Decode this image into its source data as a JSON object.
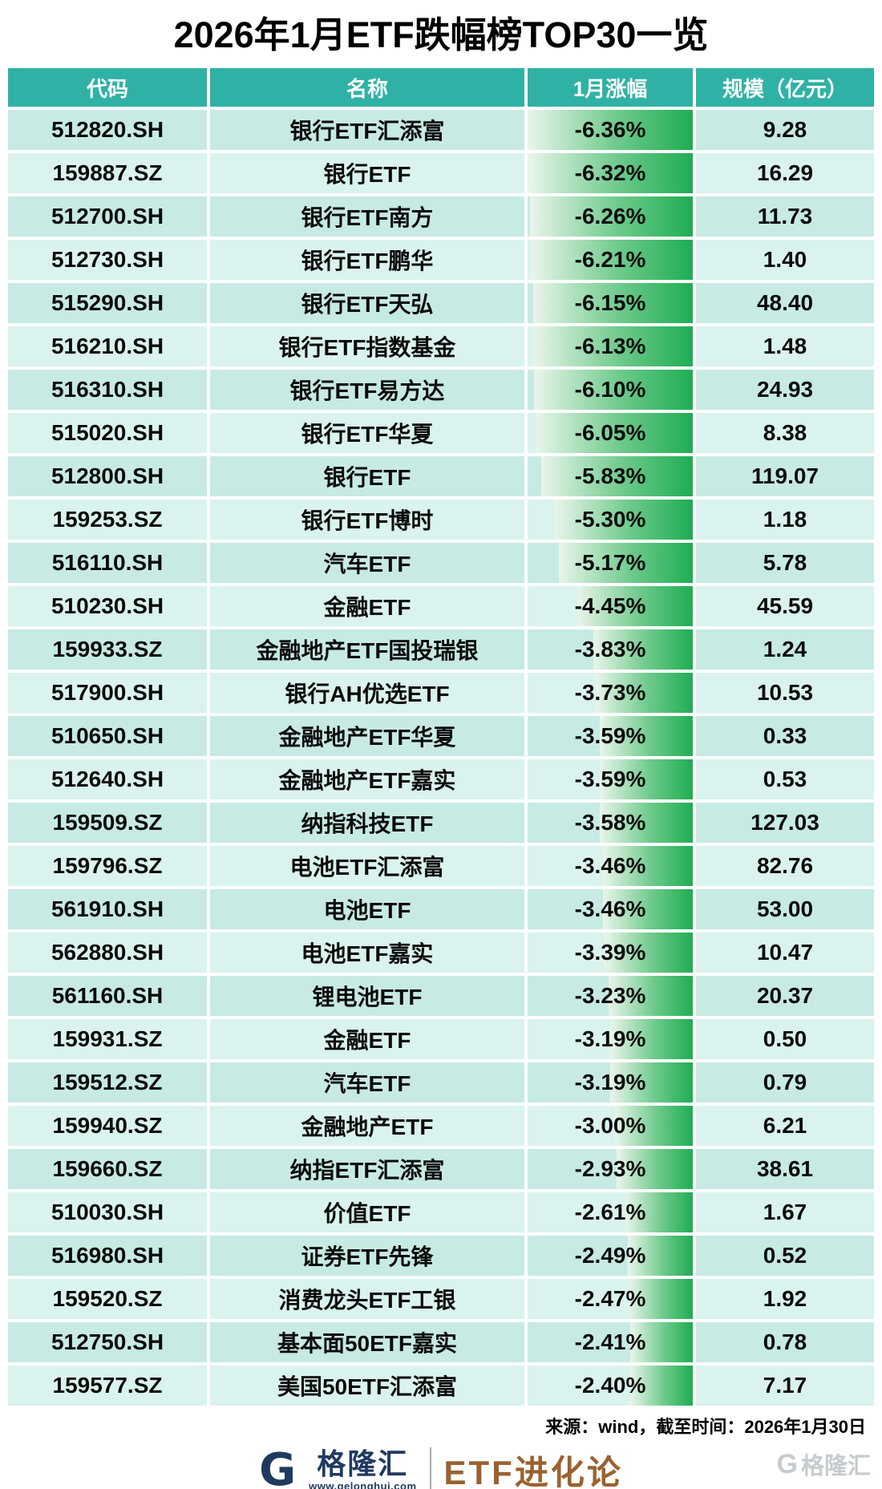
{
  "header": {
    "title": "2026年1月ETF跌幅榜TOP30一览"
  },
  "chart_data": {
    "type": "table",
    "title": "2026年1月ETF跌幅榜TOP30一览",
    "columns": [
      "代码",
      "名称",
      "1月涨幅",
      "规模（亿元）"
    ],
    "bar_column": "1月涨幅",
    "bar_max_abs_pct": 6.36,
    "bar_anchor": "right",
    "rows": [
      {
        "code": "512820.SH",
        "name": "银行ETF汇添富",
        "change": "-6.36%",
        "scale": "9.28"
      },
      {
        "code": "159887.SZ",
        "name": "银行ETF",
        "change": "-6.32%",
        "scale": "16.29"
      },
      {
        "code": "512700.SH",
        "name": "银行ETF南方",
        "change": "-6.26%",
        "scale": "11.73"
      },
      {
        "code": "512730.SH",
        "name": "银行ETF鹏华",
        "change": "-6.21%",
        "scale": "1.40"
      },
      {
        "code": "515290.SH",
        "name": "银行ETF天弘",
        "change": "-6.15%",
        "scale": "48.40"
      },
      {
        "code": "516210.SH",
        "name": "银行ETF指数基金",
        "change": "-6.13%",
        "scale": "1.48"
      },
      {
        "code": "516310.SH",
        "name": "银行ETF易方达",
        "change": "-6.10%",
        "scale": "24.93"
      },
      {
        "code": "515020.SH",
        "name": "银行ETF华夏",
        "change": "-6.05%",
        "scale": "8.38"
      },
      {
        "code": "512800.SH",
        "name": "银行ETF",
        "change": "-5.83%",
        "scale": "119.07"
      },
      {
        "code": "159253.SZ",
        "name": "银行ETF博时",
        "change": "-5.30%",
        "scale": "1.18"
      },
      {
        "code": "516110.SH",
        "name": "汽车ETF",
        "change": "-5.17%",
        "scale": "5.78"
      },
      {
        "code": "510230.SH",
        "name": "金融ETF",
        "change": "-4.45%",
        "scale": "45.59"
      },
      {
        "code": "159933.SZ",
        "name": "金融地产ETF国投瑞银",
        "change": "-3.83%",
        "scale": "1.24"
      },
      {
        "code": "517900.SH",
        "name": "银行AH优选ETF",
        "change": "-3.73%",
        "scale": "10.53"
      },
      {
        "code": "510650.SH",
        "name": "金融地产ETF华夏",
        "change": "-3.59%",
        "scale": "0.33"
      },
      {
        "code": "512640.SH",
        "name": "金融地产ETF嘉实",
        "change": "-3.59%",
        "scale": "0.53"
      },
      {
        "code": "159509.SZ",
        "name": "纳指科技ETF",
        "change": "-3.58%",
        "scale": "127.03"
      },
      {
        "code": "159796.SZ",
        "name": "电池ETF汇添富",
        "change": "-3.46%",
        "scale": "82.76"
      },
      {
        "code": "561910.SH",
        "name": "电池ETF",
        "change": "-3.46%",
        "scale": "53.00"
      },
      {
        "code": "562880.SH",
        "name": "电池ETF嘉实",
        "change": "-3.39%",
        "scale": "10.47"
      },
      {
        "code": "561160.SH",
        "name": "锂电池ETF",
        "change": "-3.23%",
        "scale": "20.37"
      },
      {
        "code": "159931.SZ",
        "name": "金融ETF",
        "change": "-3.19%",
        "scale": "0.50"
      },
      {
        "code": "159512.SZ",
        "name": "汽车ETF",
        "change": "-3.19%",
        "scale": "0.79"
      },
      {
        "code": "159940.SZ",
        "name": "金融地产ETF",
        "change": "-3.00%",
        "scale": "6.21"
      },
      {
        "code": "159660.SZ",
        "name": "纳指ETF汇添富",
        "change": "-2.93%",
        "scale": "38.61"
      },
      {
        "code": "510030.SH",
        "name": "价值ETF",
        "change": "-2.61%",
        "scale": "1.67"
      },
      {
        "code": "516980.SH",
        "name": "证券ETF先锋",
        "change": "-2.49%",
        "scale": "0.52"
      },
      {
        "code": "159520.SZ",
        "name": "消费龙头ETF工银",
        "change": "-2.47%",
        "scale": "1.92"
      },
      {
        "code": "512750.SH",
        "name": "基本面50ETF嘉实",
        "change": "-2.41%",
        "scale": "0.78"
      },
      {
        "code": "159577.SZ",
        "name": "美国50ETF汇添富",
        "change": "-2.40%",
        "scale": "7.17"
      }
    ]
  },
  "footer": {
    "source": "来源：wind，截至时间：2026年1月30日",
    "brand_g": "G",
    "brand_name": "格隆汇",
    "brand_url": "www.gelonghui.com",
    "brand_label": "ETF进化论",
    "watermark_g": "G",
    "watermark_text": "格隆汇"
  },
  "colors": {
    "teal": "#2FB2A5",
    "row_odd": "#C7EAE4",
    "row_even": "#DAF3EF",
    "bar_start": "#EAF5EB",
    "bar_mid": "#6CC98B",
    "bar_end": "#1FAD53",
    "navy": "#1F3A60",
    "brown": "#9A6230",
    "watermark": "#C6CBCE"
  }
}
